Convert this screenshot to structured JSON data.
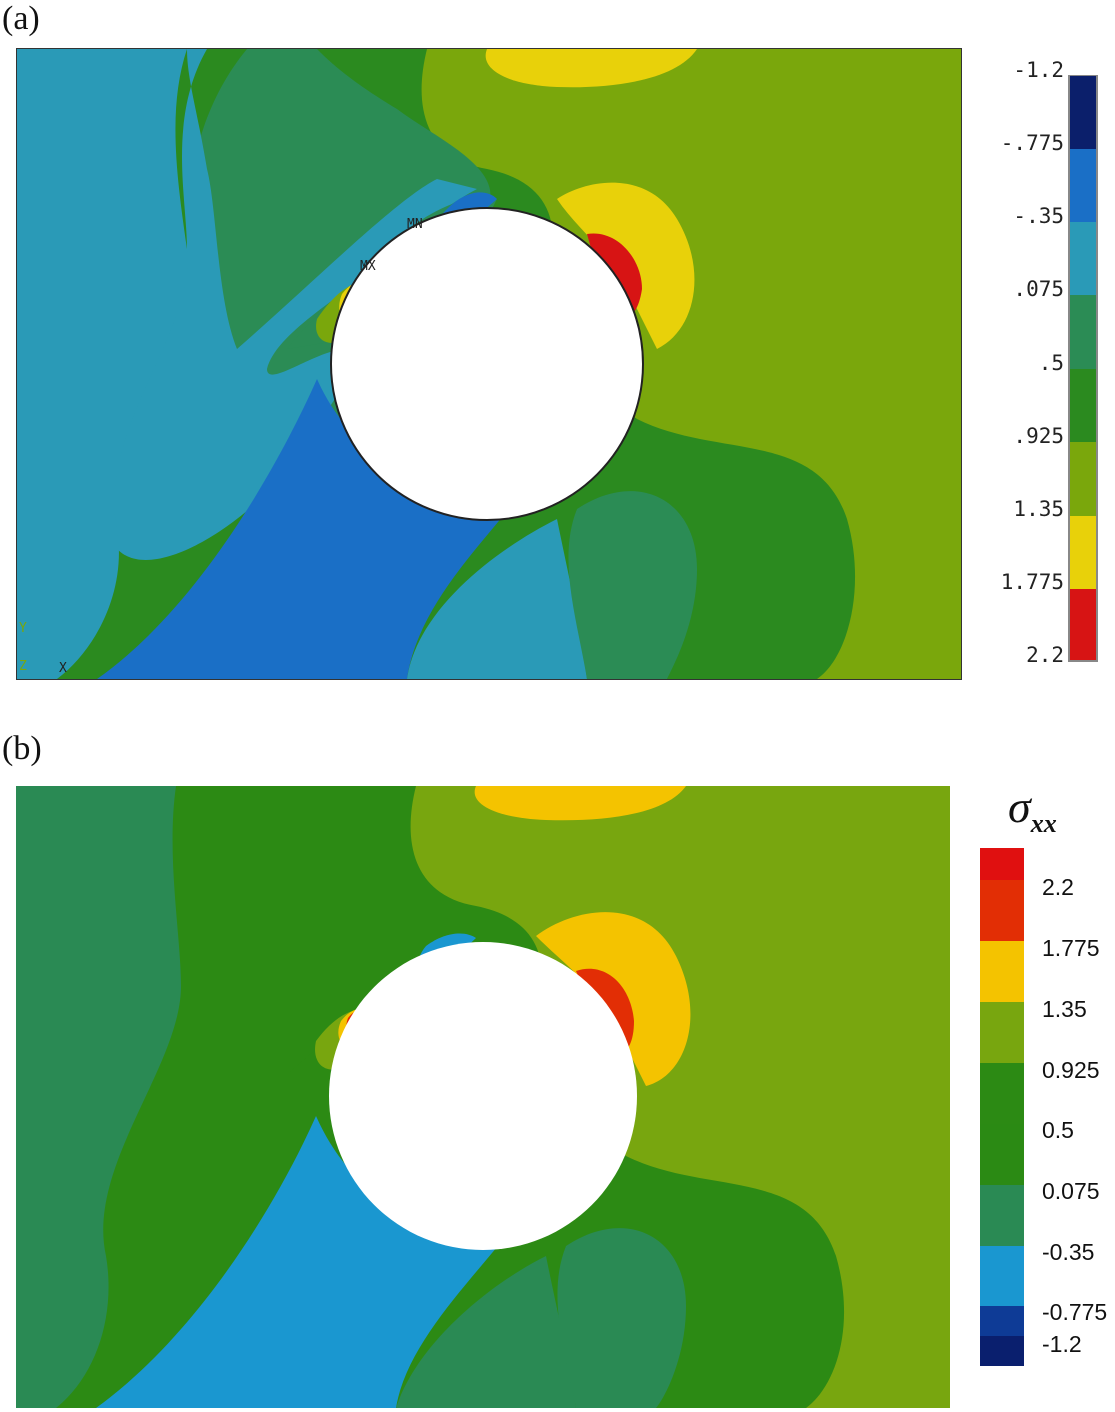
{
  "panels": {
    "a": {
      "label": "(a)"
    },
    "b": {
      "label": "(b)"
    }
  },
  "markers": {
    "min": "MN",
    "max": "MX"
  },
  "triad": {
    "y": "Y",
    "z": "Z",
    "x": "X"
  },
  "legend_a": {
    "labels": [
      "-1.2",
      "-.775",
      "-.35",
      ".075",
      ".5",
      ".925",
      "1.35",
      "1.775",
      "2.2"
    ],
    "colors": [
      "#0b1f6b",
      "#1a6fc6",
      "#2a9ab7",
      "#2b8c55",
      "#2b8a1f",
      "#7aa70c",
      "#e8d10a",
      "#d71414"
    ]
  },
  "legend_b": {
    "title": "σ",
    "title_sub": "xx",
    "labels": [
      "2.2",
      "1.775",
      "1.35",
      "0.925",
      "0.5",
      "0.075",
      "-0.35",
      "-0.775",
      "-1.2"
    ],
    "colors": [
      "#e01010",
      "#e22e05",
      "#f4c300",
      "#78a60f",
      "#2c8a14",
      "#2b8a14",
      "#2a8a54",
      "#1a97d0",
      "#0e3b96",
      "#0a1f6e"
    ]
  },
  "palette": {
    "dark_blue": "#0b1f6b",
    "blue": "#1a6fc6",
    "cyan": "#2a9ab7",
    "teal_green": "#2b8c55",
    "green": "#2b8a1f",
    "yellow_green": "#7aa70c",
    "yellow": "#e8d10a",
    "red": "#d71414"
  }
}
